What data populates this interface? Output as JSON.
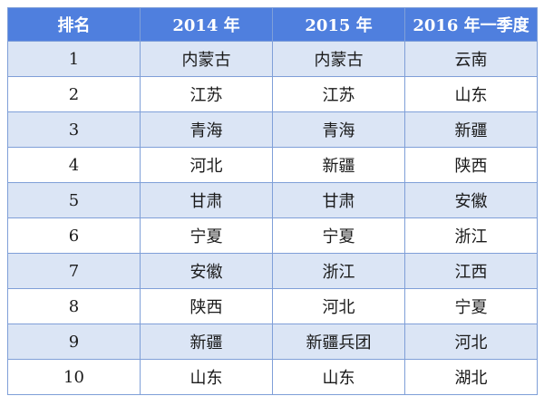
{
  "table": {
    "headers": [
      "排名",
      "2014 年",
      "2015 年",
      "2016 年一季度"
    ],
    "rows": [
      [
        "1",
        "内蒙古",
        "内蒙古",
        "云南"
      ],
      [
        "2",
        "江苏",
        "江苏",
        "山东"
      ],
      [
        "3",
        "青海",
        "青海",
        "新疆"
      ],
      [
        "4",
        "河北",
        "新疆",
        "陕西"
      ],
      [
        "5",
        "甘肃",
        "甘肃",
        "安徽"
      ],
      [
        "6",
        "宁夏",
        "宁夏",
        "浙江"
      ],
      [
        "7",
        "安徽",
        "浙江",
        "江西"
      ],
      [
        "8",
        "陕西",
        "河北",
        "宁夏"
      ],
      [
        "9",
        "新疆",
        "新疆兵团",
        "河北"
      ],
      [
        "10",
        "山东",
        "山东",
        "湖北"
      ]
    ]
  },
  "colors": {
    "header_bg": "#4f7fde",
    "stripe_bg": "#dbe5f5",
    "border": "#7f9fd8"
  }
}
